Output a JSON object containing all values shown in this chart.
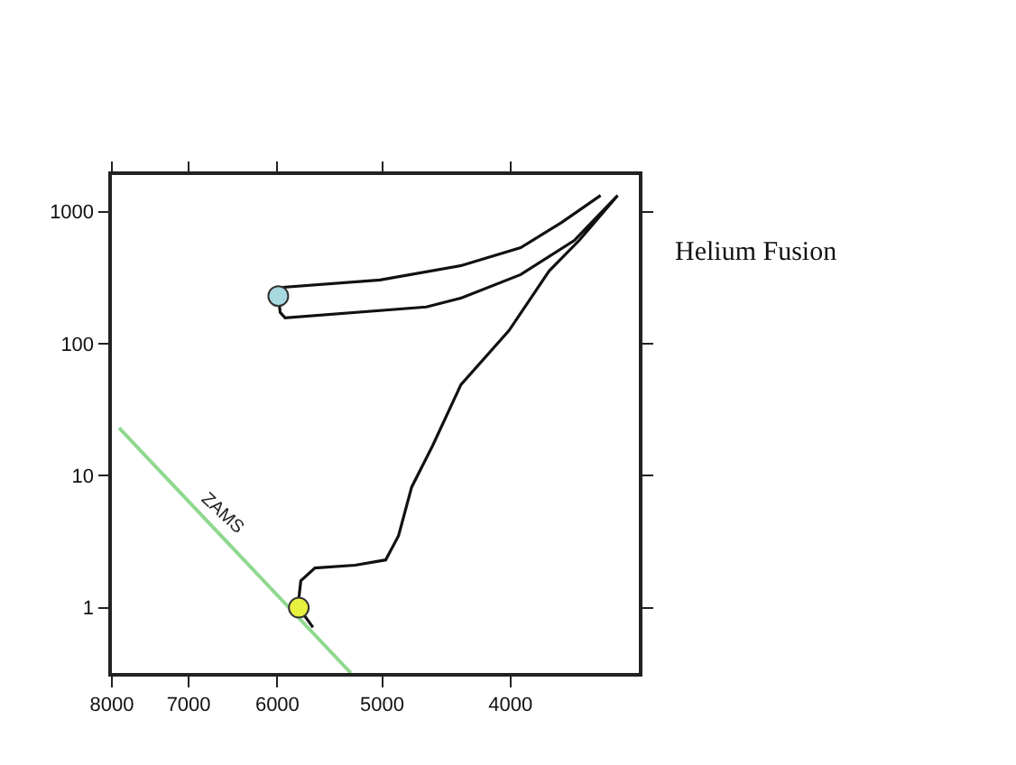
{
  "chart_data": {
    "type": "line",
    "log": "xy",
    "xlim": [
      8000,
      3200
    ],
    "xticks": [
      8000,
      7000,
      6000,
      5000,
      4000
    ],
    "ylim": [
      0.32,
      1900
    ],
    "yticks": [
      1,
      10,
      100,
      1000
    ],
    "series": [
      {
        "color": "#90d890",
        "x": [
          7900,
          5280
        ],
        "values": [
          23,
          0.32
        ]
      },
      {
        "color": "#111111",
        "x": [
          5640,
          5780,
          5780,
          5760,
          5620,
          5240,
          4970,
          4860,
          4750,
          4580,
          4360,
          4010,
          3740,
          3550,
          3320,
          3580,
          3930,
          4360,
          4630,
          5920,
          5970,
          5990,
          5940,
          5020,
          4360,
          3930,
          3660,
          3420
        ],
        "values": [
          0.71,
          1.0,
          1.17,
          1.6,
          2.0,
          2.1,
          2.3,
          3.5,
          8.2,
          16.9,
          49,
          126,
          356,
          607,
          1330,
          607,
          334,
          222,
          190,
          157,
          173,
          230,
          268,
          304,
          391,
          535,
          830,
          1330
        ]
      },
      {
        "type": "scatter",
        "marker": "circle",
        "color": "#e8f040",
        "x": [
          5780
        ],
        "values": [
          1.0
        ]
      },
      {
        "type": "scatter",
        "marker": "circle",
        "color": "#a8d8e0",
        "x": [
          5990
        ],
        "values": [
          230
        ]
      }
    ],
    "annotations": [
      "ZAMS",
      "Helium Fusion"
    ]
  }
}
